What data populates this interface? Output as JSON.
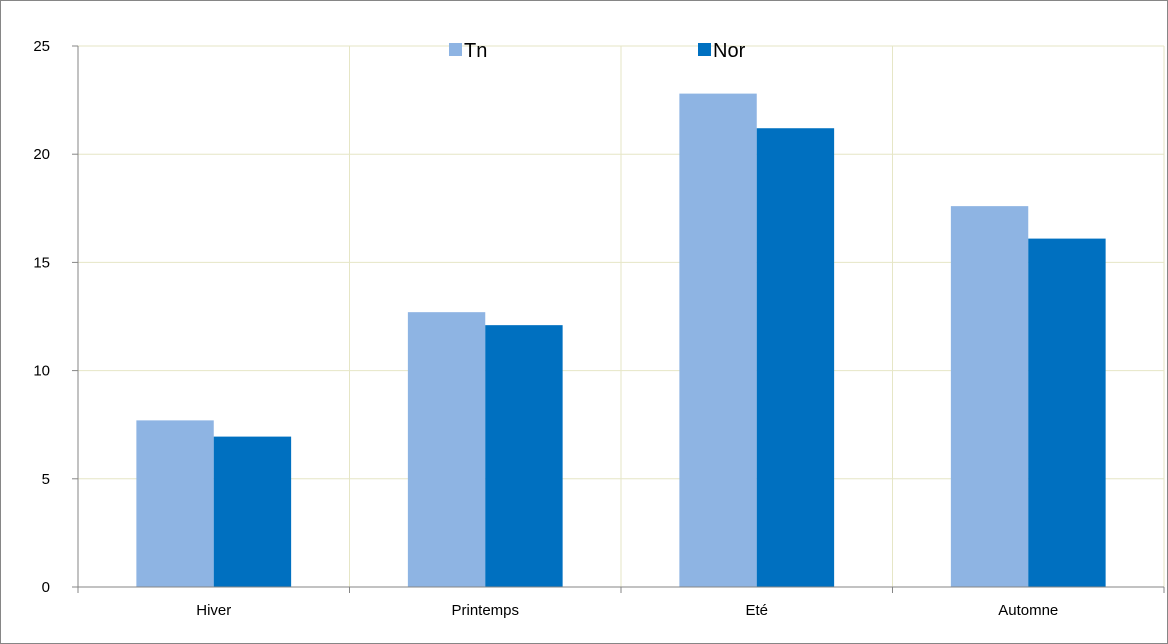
{
  "chart_data": {
    "type": "bar",
    "title": "",
    "xlabel": "",
    "ylabel": "",
    "categories": [
      "Hiver",
      "Printemps",
      "Eté",
      "Automne"
    ],
    "series": [
      {
        "name": "Tn",
        "values": [
          7.7,
          12.7,
          22.8,
          17.6
        ],
        "color": "#8EB4E3"
      },
      {
        "name": "Nor",
        "values": [
          6.95,
          12.1,
          21.2,
          16.1
        ],
        "color": "#0070C0"
      }
    ],
    "ylim": [
      0,
      25
    ],
    "yticks": [
      "0",
      "5",
      "10",
      "15",
      "20",
      "25"
    ],
    "grid": true,
    "legend": "top-center"
  }
}
